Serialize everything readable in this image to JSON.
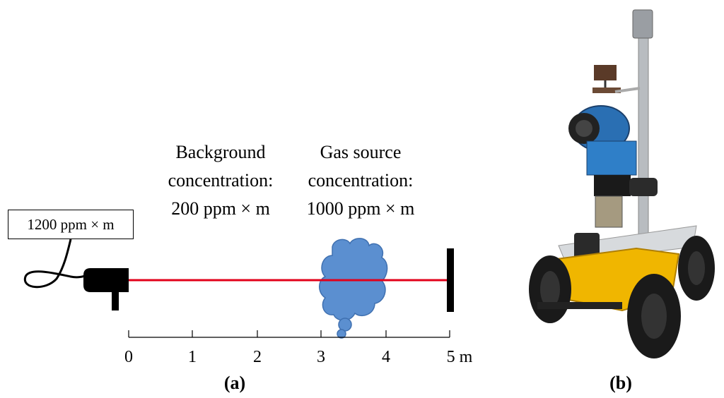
{
  "panel_a": {
    "reading_box": "1200 ppm × m",
    "background": {
      "line1": "Background",
      "line2": "concentration:",
      "line3": "200 ppm × m"
    },
    "gas_source": {
      "line1": "Gas source",
      "line2": "concentration:",
      "line3": "1000 ppm × m"
    },
    "scale_ticks": [
      "0",
      "1",
      "2",
      "3",
      "4",
      "5 m"
    ],
    "label": "(a)",
    "colors": {
      "laser_beam": "#e2001a",
      "gas_plume": "#5b8fd0",
      "sensor": "#000000",
      "reflector": "#000000"
    }
  },
  "panel_b": {
    "label": "(b)",
    "image": "mobile robot with gas sensing equipment"
  }
}
